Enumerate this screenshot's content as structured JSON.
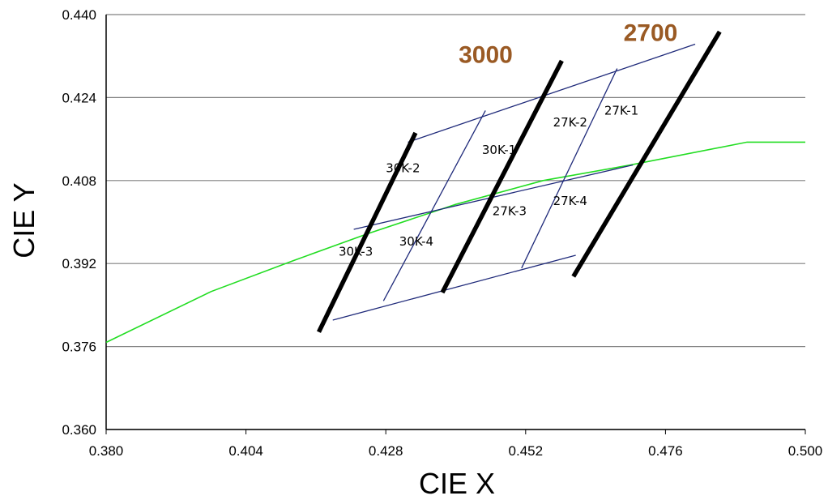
{
  "chart_data": {
    "type": "line",
    "xlabel": "CIE X",
    "ylabel": "CIE Y",
    "xlim": [
      0.38,
      0.5
    ],
    "ylim": [
      0.36,
      0.44
    ],
    "x_ticks": [
      "0.380",
      "0.404",
      "0.428",
      "0.452",
      "0.476",
      "0.500"
    ],
    "y_ticks": [
      "0.360",
      "0.376",
      "0.392",
      "0.408",
      "0.424",
      "0.440"
    ],
    "grid": "horizontal",
    "colors": {
      "locus": "#22dd22",
      "quad": "#1f2a7a",
      "cct_line": "#000000",
      "cct_label": "#9a5a24",
      "grid": "#808080"
    },
    "series": [
      {
        "kind": "locus",
        "x": [
          0.38,
          0.398,
          0.412,
          0.425,
          0.44,
          0.455,
          0.47,
          0.49,
          0.5
        ],
        "y": [
          0.3768,
          0.3866,
          0.3925,
          0.3978,
          0.4034,
          0.408,
          0.411,
          0.4154,
          0.4154
        ]
      }
    ],
    "cct_lines": [
      {
        "label": "",
        "x": [
          0.4165,
          0.4331
        ],
        "y": [
          0.3788,
          0.4172
        ]
      },
      {
        "label": "3000",
        "x": [
          0.4377,
          0.4582
        ],
        "y": [
          0.3864,
          0.4311
        ]
      },
      {
        "label": "2700",
        "x": [
          0.4602,
          0.4853
        ],
        "y": [
          0.3895,
          0.4367
        ]
      }
    ],
    "quad_lines": [
      {
        "x": [
          0.4318,
          0.4811
        ],
        "y": [
          0.4154,
          0.4343
        ]
      },
      {
        "x": [
          0.4189,
          0.4606
        ],
        "y": [
          0.3811,
          0.3936
        ]
      },
      {
        "x": [
          0.4225,
          0.4704
        ],
        "y": [
          0.3986,
          0.411
        ]
      },
      {
        "x": [
          0.4276,
          0.4451
        ],
        "y": [
          0.3848,
          0.4215
        ]
      },
      {
        "x": [
          0.4513,
          0.4677
        ],
        "y": [
          0.3911,
          0.4296
        ]
      }
    ],
    "cell_labels": [
      {
        "text": "30K-1",
        "x": 0.4445,
        "y": 0.4131
      },
      {
        "text": "30K-2",
        "x": 0.428,
        "y": 0.4096
      },
      {
        "text": "30K-3",
        "x": 0.4199,
        "y": 0.3935
      },
      {
        "text": "30K-4",
        "x": 0.4303,
        "y": 0.3955
      },
      {
        "text": "27K-1",
        "x": 0.4655,
        "y": 0.4207
      },
      {
        "text": "27K-2",
        "x": 0.4567,
        "y": 0.4184
      },
      {
        "text": "27K-3",
        "x": 0.4463,
        "y": 0.4013
      },
      {
        "text": "27K-4",
        "x": 0.4567,
        "y": 0.4033
      }
    ],
    "cct_labels": [
      {
        "text": "3000",
        "x": 0.4405,
        "y": 0.4307
      },
      {
        "text": "2700",
        "x": 0.4688,
        "y": 0.4349
      }
    ]
  }
}
